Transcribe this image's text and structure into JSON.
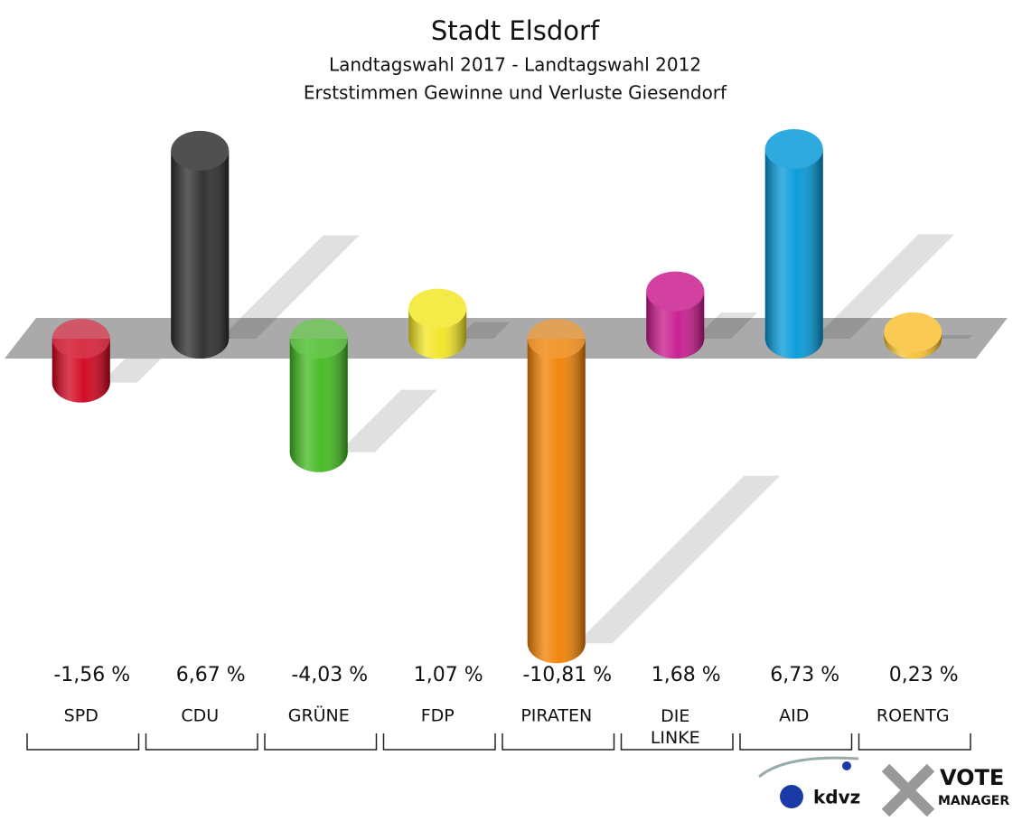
{
  "chart_data": {
    "type": "bar",
    "title": "Stadt Elsdorf",
    "subtitle": [
      "Landtagswahl 2017 - Landtagswahl 2012",
      "Erststimmen Gewinne und Verluste Giesendorf"
    ],
    "categories": [
      "SPD",
      "CDU",
      "GRÜNE",
      "FDP",
      "PIRATEN",
      "DIE LINKE",
      "AID",
      "ROENTG"
    ],
    "values": [
      -1.56,
      6.67,
      -4.03,
      1.07,
      -10.81,
      1.68,
      6.73,
      0.23
    ],
    "value_labels": [
      "-1,56 %",
      "6,67 %",
      "-4,03 %",
      "1,07 %",
      "-10,81 %",
      "1,68 %",
      "6,73 %",
      "0,23 %"
    ],
    "colors": [
      "#d0001b",
      "#2a2a2a",
      "#3fb91c",
      "#f2e620",
      "#f08000",
      "#c8168c",
      "#0098d8",
      "#f8c030"
    ]
  },
  "footer": {
    "brand": "kdvz",
    "logo": [
      "VOTE",
      "MANAGER"
    ]
  }
}
